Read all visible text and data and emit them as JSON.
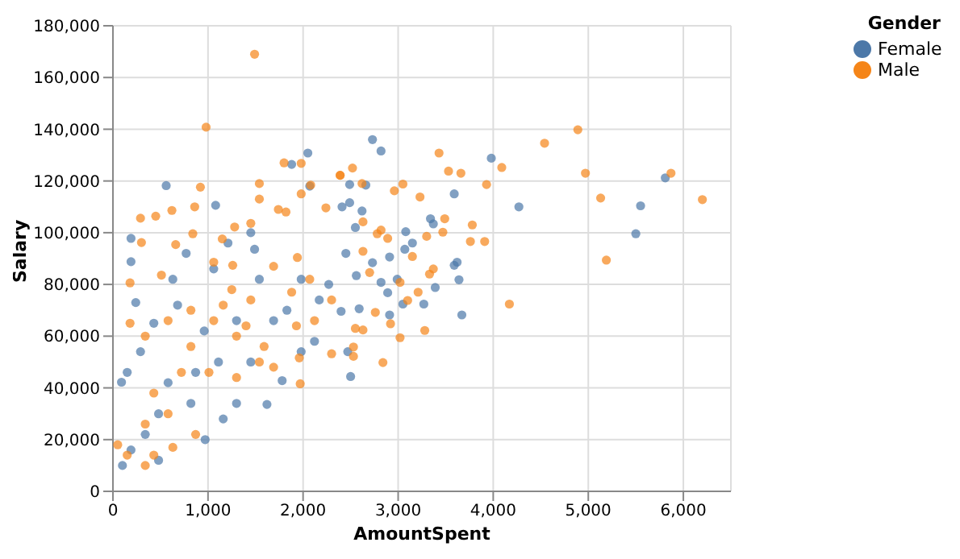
{
  "chart_data": {
    "type": "scatter",
    "xlabel": "AmountSpent",
    "ylabel": "Salary",
    "legend_title": "Gender",
    "legend": "top right",
    "grid": true,
    "marker": "circle",
    "xlim": [
      0,
      6500
    ],
    "xticks": [
      0,
      {
        "value": 1000,
        "label": "1,000"
      },
      {
        "value": 2000,
        "label": "2,000"
      },
      {
        "value": 3000,
        "label": "3,000"
      },
      {
        "value": 4000,
        "label": "4,000"
      },
      {
        "value": 5000,
        "label": "5,000"
      },
      {
        "value": 6000,
        "label": "6,000"
      }
    ],
    "ylim": [
      0,
      180000
    ],
    "yticks": [
      0,
      {
        "value": 20000,
        "label": "20,000"
      },
      {
        "value": 40000,
        "label": "40,000"
      },
      {
        "value": 60000,
        "label": "60,000"
      },
      {
        "value": 80000,
        "label": "80,000"
      },
      {
        "value": 100000,
        "label": "100,000"
      },
      {
        "value": 120000,
        "label": "120,000"
      },
      {
        "value": 140000,
        "label": "140,000"
      },
      {
        "value": 160000,
        "label": "160,000"
      },
      {
        "value": 180000,
        "label": "180,000"
      }
    ],
    "series": [
      {
        "name": "Female",
        "color": "#4c78a8",
        "x": [
          5500,
          5550,
          5810,
          2730,
          2820,
          3980,
          4270,
          3590,
          3340,
          3370,
          3080,
          3070,
          3150,
          3590,
          3620,
          3640,
          3390,
          3670,
          3270,
          3050,
          2990,
          2910,
          2890,
          2910,
          2490,
          2490,
          2550,
          2620,
          2450,
          2560,
          2730,
          2400,
          2590,
          2470,
          2500,
          2820,
          2660,
          2050,
          1880,
          560,
          1080,
          190,
          190,
          240,
          90,
          1210,
          1490,
          430,
          680,
          960,
          1110,
          1300,
          970,
          1160,
          820,
          580,
          480,
          340,
          190,
          100,
          480,
          1690,
          1830,
          1620,
          1780,
          2170,
          1980,
          2270,
          1540,
          1300,
          870,
          1450,
          1060,
          770,
          630,
          290,
          150,
          2120,
          1980,
          2410,
          1450,
          2070
        ],
        "values": [
          99600,
          110400,
          121200,
          136000,
          131600,
          128800,
          110000,
          115000,
          105400,
          103400,
          100400,
          93600,
          96000,
          87400,
          88600,
          81800,
          78800,
          68200,
          72400,
          72400,
          82000,
          90600,
          76800,
          68200,
          118600,
          111600,
          102000,
          108400,
          92000,
          83400,
          88400,
          69600,
          70600,
          54000,
          44400,
          80800,
          118400,
          130800,
          126400,
          118200,
          110600,
          97800,
          88800,
          73000,
          42200,
          96000,
          93600,
          65000,
          72000,
          62000,
          50000,
          34000,
          20000,
          28000,
          34000,
          42000,
          30000,
          22000,
          16000,
          10000,
          12000,
          66000,
          70000,
          33600,
          42800,
          74000,
          82000,
          80000,
          82000,
          66000,
          46000,
          50000,
          86000,
          92000,
          82000,
          54000,
          46000,
          58000,
          54000,
          110000,
          100000,
          118000
        ]
      },
      {
        "name": "Male",
        "color": "#f58518",
        "x": [
          4890,
          4970,
          5130,
          5190,
          5870,
          6200,
          4540,
          4090,
          3930,
          3430,
          3530,
          3660,
          3050,
          2960,
          3230,
          2520,
          2390,
          2620,
          3490,
          3780,
          3760,
          3910,
          3470,
          3300,
          3150,
          3370,
          3330,
          3210,
          3100,
          3020,
          3020,
          2920,
          3280,
          2840,
          4170,
          2780,
          2630,
          2630,
          2700,
          2760,
          2630,
          2550,
          2530,
          2530,
          2890,
          2820,
          1490,
          980,
          1800,
          1980,
          1540,
          920,
          2390,
          290,
          300,
          450,
          620,
          860,
          660,
          840,
          1060,
          1150,
          1260,
          1280,
          1450,
          1540,
          1740,
          1820,
          1980,
          2080,
          2240,
          1940,
          510,
          180,
          180,
          340,
          1160,
          1450,
          1690,
          1880,
          2070,
          2300,
          2120,
          1930,
          1960,
          1970,
          2300,
          1590,
          1300,
          1060,
          820,
          580,
          820,
          1010,
          720,
          1300,
          430,
          340,
          580,
          630,
          430,
          340,
          150,
          50,
          870,
          1540,
          1690,
          1250,
          1400
        ],
        "values": [
          139800,
          123000,
          113400,
          89400,
          123000,
          112800,
          134600,
          125200,
          118600,
          130800,
          123800,
          123000,
          118800,
          116200,
          113800,
          125000,
          122200,
          119000,
          105400,
          103000,
          96600,
          96600,
          100200,
          98600,
          90800,
          86000,
          84000,
          77000,
          73800,
          80800,
          59400,
          64800,
          62200,
          49800,
          72400,
          99600,
          104200,
          92800,
          84600,
          69200,
          62400,
          63000,
          55800,
          52200,
          97800,
          101000,
          169000,
          140800,
          127000,
          126800,
          119000,
          117600,
          122200,
          105600,
          96200,
          106400,
          108600,
          110000,
          95400,
          99600,
          88600,
          97600,
          87400,
          102200,
          103600,
          113000,
          109000,
          108000,
          115000,
          118400,
          109600,
          90400,
          83600,
          80600,
          65000,
          60000,
          72000,
          74000,
          87000,
          77000,
          82000,
          74000,
          66000,
          64000,
          51600,
          41600,
          53200,
          56000,
          60000,
          66000,
          70000,
          66000,
          56000,
          46000,
          46000,
          44000,
          38000,
          26000,
          30000,
          17000,
          14000,
          10000,
          14000,
          18000,
          22000,
          50000,
          48000,
          78000,
          64000
        ]
      }
    ]
  }
}
